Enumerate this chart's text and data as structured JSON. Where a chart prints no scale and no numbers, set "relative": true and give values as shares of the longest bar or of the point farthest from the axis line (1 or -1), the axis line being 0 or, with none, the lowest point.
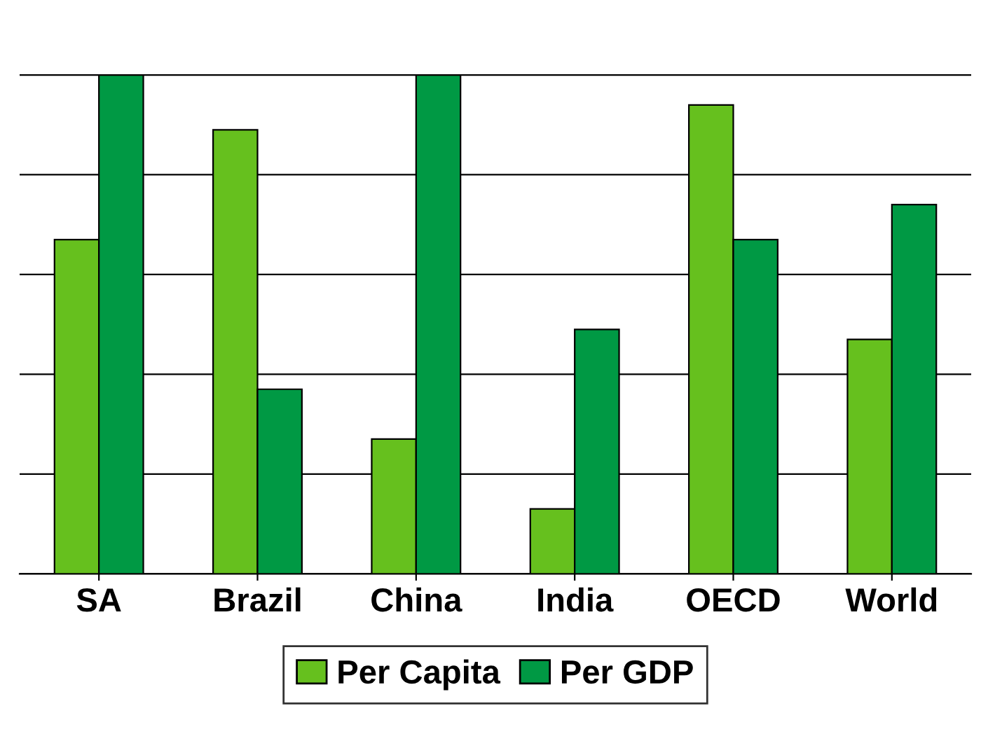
{
  "chart_data": {
    "type": "bar",
    "relative": true,
    "grid": "y",
    "legend": "bottom",
    "categories": [
      "SA",
      "Brazil",
      "China",
      "India",
      "OECD",
      "World"
    ],
    "series": [
      {
        "name": "Per Capita",
        "color": "#66c01e",
        "values": [
          0.67,
          0.89,
          0.27,
          0.13,
          0.94,
          0.47
        ]
      },
      {
        "name": "Per GDP",
        "color": "#009944",
        "values": [
          1,
          0.37,
          1,
          0.49,
          0.67,
          0.74
        ]
      }
    ]
  }
}
